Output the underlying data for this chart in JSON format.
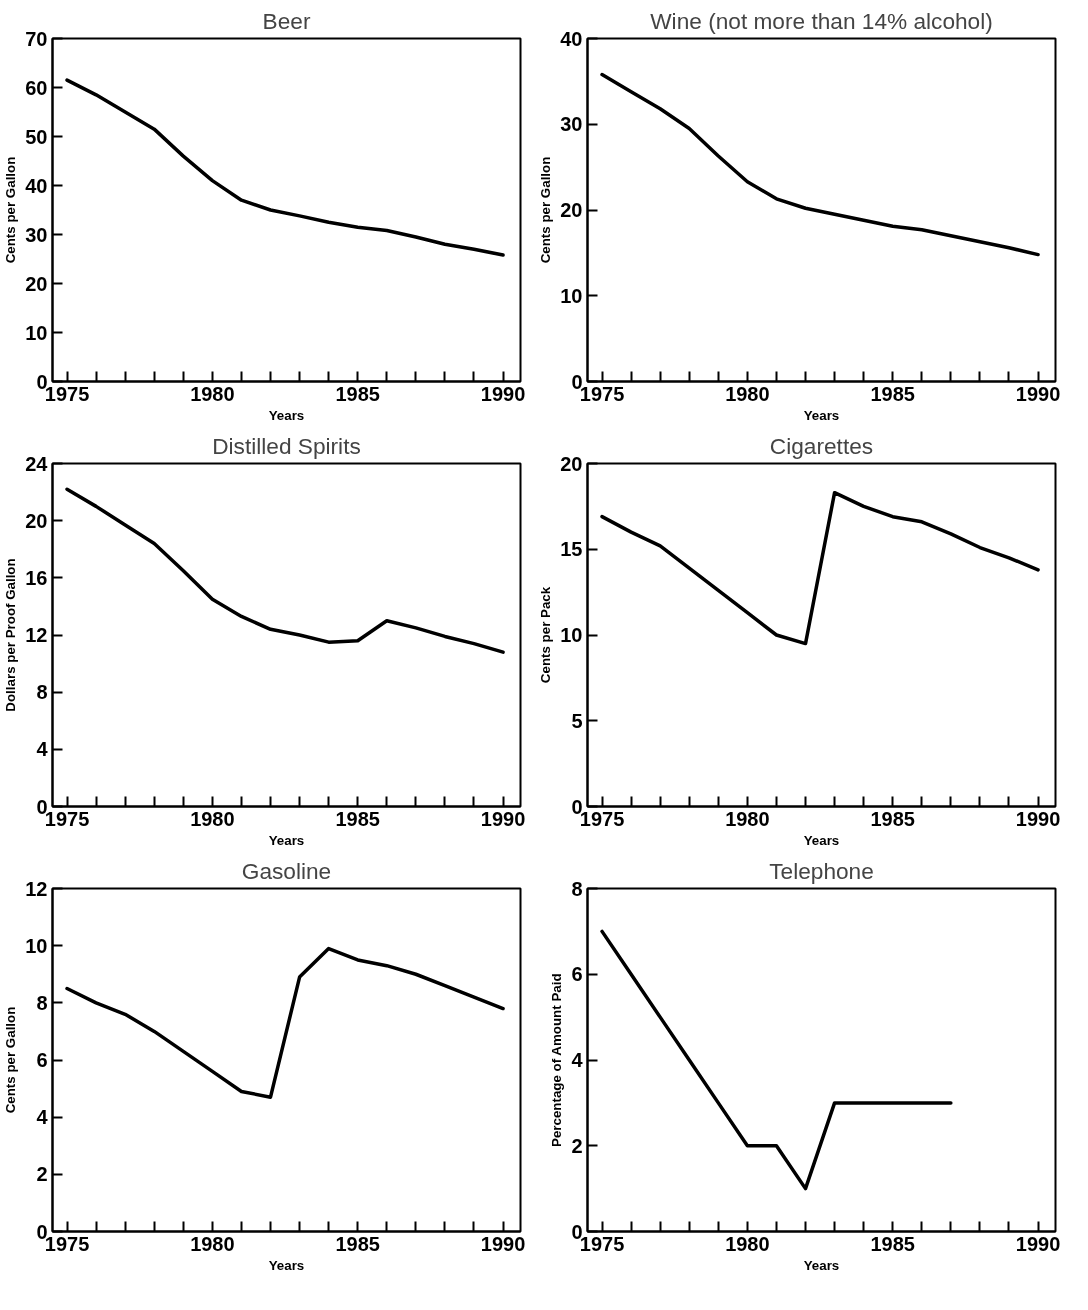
{
  "chart_data": [
    {
      "type": "line",
      "title": "Beer",
      "xlabel": "Years",
      "ylabel": "Cents per Gallon",
      "x": [
        1975,
        1976,
        1977,
        1978,
        1979,
        1980,
        1981,
        1982,
        1983,
        1984,
        1985,
        1986,
        1987,
        1988,
        1989,
        1990
      ],
      "series": [
        {
          "color": "#000000",
          "values": [
            61.5,
            58.5,
            55,
            51.5,
            46,
            41,
            37,
            35,
            33.8,
            32.5,
            31.5,
            30.8,
            29.5,
            28,
            27,
            25.8
          ]
        }
      ],
      "xlim": [
        1974.5,
        1990.6
      ],
      "ylim": [
        0,
        70
      ],
      "yticks": [
        0,
        10,
        20,
        30,
        40,
        50,
        60,
        70
      ],
      "xticks": [
        1975,
        {
          "value": 1976,
          "label": null
        },
        {
          "value": 1977,
          "label": null
        },
        {
          "value": 1978,
          "label": null
        },
        {
          "value": 1979,
          "label": null
        },
        1980,
        {
          "value": 1981,
          "label": null
        },
        {
          "value": 1982,
          "label": null
        },
        {
          "value": 1983,
          "label": null
        },
        {
          "value": 1984,
          "label": null
        },
        1985,
        {
          "value": 1986,
          "label": null
        },
        {
          "value": 1987,
          "label": null
        },
        {
          "value": 1988,
          "label": null
        },
        {
          "value": 1989,
          "label": null
        },
        1990
      ]
    },
    {
      "type": "line",
      "title": "Wine (not more than 14% alcohol)",
      "xlabel": "Years",
      "ylabel": "Cents per Gallon",
      "x": [
        1975,
        1976,
        1977,
        1978,
        1979,
        1980,
        1981,
        1982,
        1983,
        1984,
        1985,
        1986,
        1987,
        1988,
        1989,
        1990
      ],
      "series": [
        {
          "color": "#000000",
          "values": [
            35.8,
            33.8,
            31.8,
            29.5,
            26.3,
            23.3,
            21.3,
            20.2,
            19.5,
            18.8,
            18.1,
            17.7,
            17.0,
            16.3,
            15.6,
            14.8
          ]
        }
      ],
      "xlim": [
        1974.5,
        1990.6
      ],
      "ylim": [
        0,
        40
      ],
      "yticks": [
        0,
        10,
        20,
        30,
        40
      ],
      "xticks": [
        1975,
        {
          "value": 1976,
          "label": null
        },
        {
          "value": 1977,
          "label": null
        },
        {
          "value": 1978,
          "label": null
        },
        {
          "value": 1979,
          "label": null
        },
        1980,
        {
          "value": 1981,
          "label": null
        },
        {
          "value": 1982,
          "label": null
        },
        {
          "value": 1983,
          "label": null
        },
        {
          "value": 1984,
          "label": null
        },
        1985,
        {
          "value": 1986,
          "label": null
        },
        {
          "value": 1987,
          "label": null
        },
        {
          "value": 1988,
          "label": null
        },
        {
          "value": 1989,
          "label": null
        },
        1990
      ]
    },
    {
      "type": "line",
      "title": "Distilled Spirits",
      "xlabel": "Years",
      "ylabel": "Dollars per Proof Gallon",
      "x": [
        1975,
        1976,
        1977,
        1978,
        1979,
        1980,
        1981,
        1982,
        1983,
        1984,
        1985,
        1986,
        1987,
        1988,
        1989,
        1990
      ],
      "series": [
        {
          "color": "#000000",
          "values": [
            22.2,
            21,
            19.7,
            18.4,
            16.5,
            14.5,
            13.3,
            12.4,
            12.0,
            11.5,
            11.6,
            13.0,
            12.5,
            11.9,
            11.4,
            10.8
          ]
        }
      ],
      "xlim": [
        1974.5,
        1990.6
      ],
      "ylim": [
        0,
        24
      ],
      "yticks": [
        0,
        4,
        8,
        12,
        16,
        20,
        24
      ],
      "xticks": [
        1975,
        {
          "value": 1976,
          "label": null
        },
        {
          "value": 1977,
          "label": null
        },
        {
          "value": 1978,
          "label": null
        },
        {
          "value": 1979,
          "label": null
        },
        1980,
        {
          "value": 1981,
          "label": null
        },
        {
          "value": 1982,
          "label": null
        },
        {
          "value": 1983,
          "label": null
        },
        {
          "value": 1984,
          "label": null
        },
        1985,
        {
          "value": 1986,
          "label": null
        },
        {
          "value": 1987,
          "label": null
        },
        {
          "value": 1988,
          "label": null
        },
        {
          "value": 1989,
          "label": null
        },
        1990
      ]
    },
    {
      "type": "line",
      "title": "Cigarettes",
      "xlabel": "Years",
      "ylabel": "Cents per Pack",
      "x": [
        1975,
        1976,
        1977,
        1978,
        1979,
        1980,
        1981,
        1982,
        1983,
        1984,
        1985,
        1986,
        1987,
        1988,
        1989,
        1990
      ],
      "series": [
        {
          "color": "#000000",
          "values": [
            16.9,
            16.0,
            15.2,
            13.9,
            12.6,
            11.3,
            10.0,
            9.5,
            18.3,
            17.5,
            16.9,
            16.6,
            15.9,
            15.1,
            14.5,
            13.8
          ]
        }
      ],
      "xlim": [
        1974.5,
        1990.6
      ],
      "ylim": [
        0,
        20
      ],
      "yticks": [
        0,
        5,
        10,
        15,
        20
      ],
      "xticks": [
        1975,
        {
          "value": 1976,
          "label": null
        },
        {
          "value": 1977,
          "label": null
        },
        {
          "value": 1978,
          "label": null
        },
        {
          "value": 1979,
          "label": null
        },
        1980,
        {
          "value": 1981,
          "label": null
        },
        {
          "value": 1982,
          "label": null
        },
        {
          "value": 1983,
          "label": null
        },
        {
          "value": 1984,
          "label": null
        },
        1985,
        {
          "value": 1986,
          "label": null
        },
        {
          "value": 1987,
          "label": null
        },
        {
          "value": 1988,
          "label": null
        },
        {
          "value": 1989,
          "label": null
        },
        1990
      ]
    },
    {
      "type": "line",
      "title": "Gasoline",
      "xlabel": "Years",
      "ylabel": "Cents per Gallon",
      "x": [
        1975,
        1976,
        1977,
        1978,
        1979,
        1980,
        1981,
        1982,
        1983,
        1984,
        1985,
        1986,
        1987,
        1988,
        1989,
        1990
      ],
      "series": [
        {
          "color": "#000000",
          "values": [
            8.5,
            8.0,
            7.6,
            7.0,
            6.3,
            5.6,
            4.9,
            4.7,
            8.9,
            9.9,
            9.5,
            9.3,
            9.0,
            8.6,
            8.2,
            7.8
          ]
        }
      ],
      "xlim": [
        1974.5,
        1990.6
      ],
      "ylim": [
        0,
        12
      ],
      "yticks": [
        0,
        2,
        4,
        6,
        8,
        10,
        12
      ],
      "xticks": [
        1975,
        {
          "value": 1976,
          "label": null
        },
        {
          "value": 1977,
          "label": null
        },
        {
          "value": 1978,
          "label": null
        },
        {
          "value": 1979,
          "label": null
        },
        1980,
        {
          "value": 1981,
          "label": null
        },
        {
          "value": 1982,
          "label": null
        },
        {
          "value": 1983,
          "label": null
        },
        {
          "value": 1984,
          "label": null
        },
        1985,
        {
          "value": 1986,
          "label": null
        },
        {
          "value": 1987,
          "label": null
        },
        {
          "value": 1988,
          "label": null
        },
        {
          "value": 1989,
          "label": null
        },
        1990
      ]
    },
    {
      "type": "line",
      "title": "Telephone",
      "xlabel": "Years",
      "ylabel": "Percentage of Amount Paid",
      "x": [
        1975,
        1976,
        1977,
        1978,
        1979,
        1980,
        1981,
        1982,
        1983,
        1984,
        1985,
        1986,
        1987
      ],
      "series": [
        {
          "color": "#000000",
          "values": [
            7,
            6,
            5,
            4,
            3,
            2,
            2,
            1,
            3,
            3,
            3,
            3,
            3
          ]
        }
      ],
      "xlim": [
        1974.5,
        1990.6
      ],
      "ylim": [
        0,
        8
      ],
      "yticks": [
        0,
        2,
        4,
        6,
        8
      ],
      "xticks": [
        1975,
        {
          "value": 1976,
          "label": null
        },
        {
          "value": 1977,
          "label": null
        },
        {
          "value": 1978,
          "label": null
        },
        {
          "value": 1979,
          "label": null
        },
        1980,
        {
          "value": 1981,
          "label": null
        },
        {
          "value": 1982,
          "label": null
        },
        {
          "value": 1983,
          "label": null
        },
        {
          "value": 1984,
          "label": null
        },
        1985,
        {
          "value": 1986,
          "label": null
        },
        {
          "value": 1987,
          "label": null
        },
        {
          "value": 1988,
          "label": null
        },
        {
          "value": 1989,
          "label": null
        },
        1990
      ]
    }
  ]
}
